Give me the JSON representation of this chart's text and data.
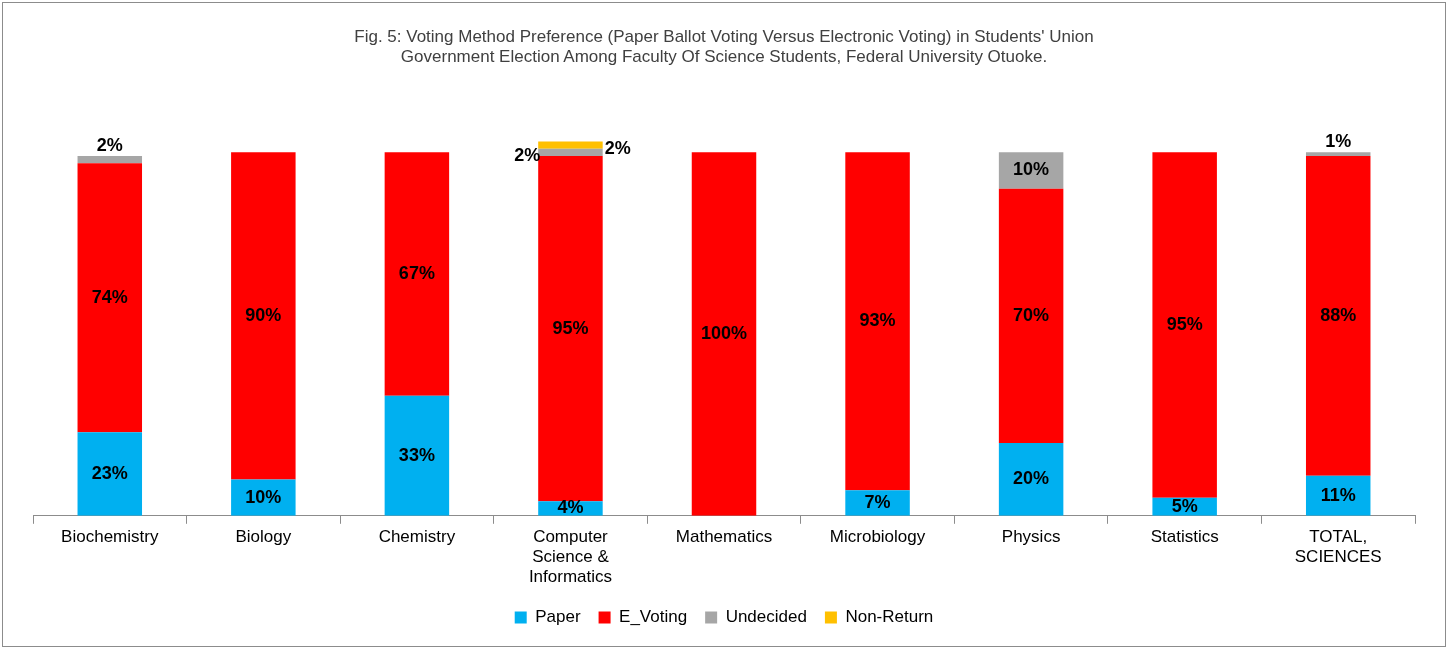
{
  "chart_data": {
    "type": "bar",
    "stacked": true,
    "title": "Fig. 5: Voting Method Preference  (Paper Ballot Voting Versus Electronic Voting) in Students' Union Government  Election Among  Faculty Of Science Students, Federal University Otuoke.",
    "categories": [
      "Biochemistry",
      "Biology",
      "Chemistry",
      "Computer Science & Informatics",
      "Mathematics",
      "Microbiology",
      "Physics",
      "Statistics",
      "TOTAL, SCIENCES"
    ],
    "series": [
      {
        "name": "Paper",
        "color": "#00b0f0",
        "values": [
          23,
          10,
          33,
          4,
          0,
          7,
          20,
          5,
          11
        ],
        "value_labels": [
          "23%",
          "10%",
          "33%",
          "4%",
          null,
          "7%",
          "20%",
          "5%",
          "11%"
        ]
      },
      {
        "name": "E_Voting",
        "color": "#ff0000",
        "values": [
          74,
          90,
          67,
          95,
          100,
          93,
          70,
          95,
          88
        ],
        "value_labels": [
          "74%",
          "90%",
          "67%",
          "95%",
          "100%",
          "93%",
          "70%",
          "95%",
          "88%"
        ]
      },
      {
        "name": "Undecided",
        "color": "#a6a6a6",
        "values": [
          2,
          0,
          0,
          2,
          0,
          0,
          10,
          0,
          1
        ],
        "value_labels": [
          "2%",
          null,
          null,
          "2%",
          null,
          null,
          "10%",
          null,
          "1%"
        ]
      },
      {
        "name": "Non-Return",
        "color": "#ffc000",
        "values": [
          0,
          0,
          0,
          2,
          0,
          0,
          0,
          0,
          0
        ],
        "value_labels": [
          null,
          null,
          null,
          "2%",
          null,
          null,
          null,
          null,
          null
        ]
      }
    ],
    "ylim": [
      0,
      104
    ],
    "tick_labels": "x",
    "legend": "bottom"
  }
}
